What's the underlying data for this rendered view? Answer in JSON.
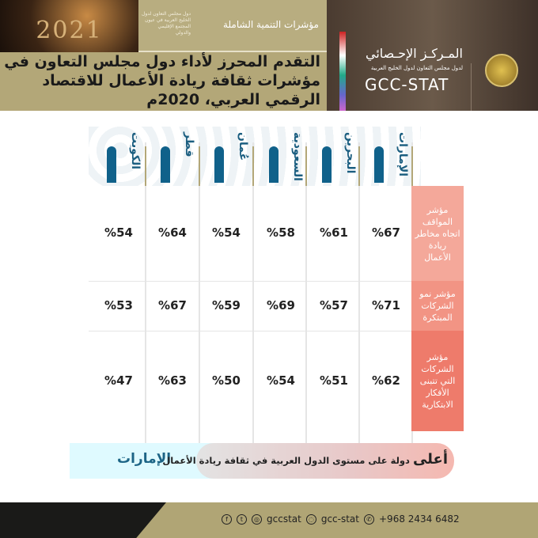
{
  "header": {
    "year": "2021",
    "series_title": "مؤشرات التنمية الشاملة",
    "series_subtitle": "دول مجلس التعاون لدول الخليج العربية في عيون المجتمع الإقليمي والدولي",
    "title": "التقدم المحرز لأداء دول مجلس التعاون في مؤشرات ثقافة ريادة الأعمال للاقتصاد الرقمي العربي، 2020م",
    "org_ar": "المـركـز الإحـصائي",
    "org_ar_sub": "لدول مجلس التعاون لدول الخليج العربية",
    "org_en": "GCC-STAT"
  },
  "countries": [
    "الإمارات",
    "البحرين",
    "السعودية",
    "عُمان",
    "قطر",
    "الكويت"
  ],
  "rows": [
    {
      "label": "مؤشر المواقف اتجاه مخاطر ريادة الأعمال",
      "color": "#f4a89a",
      "values": [
        "%67",
        "%61",
        "%58",
        "%54",
        "%64",
        "%54"
      ]
    },
    {
      "label": "مؤشر نمو الشركات المبتكرة",
      "color": "#f29484",
      "values": [
        "%71",
        "%57",
        "%69",
        "%59",
        "%67",
        "%53"
      ]
    },
    {
      "label": "مؤشر الشركات التي تتبنى الأفكار الابتكارية",
      "color": "#ee7b6b",
      "values": [
        "%62",
        "%51",
        "%54",
        "%50",
        "%63",
        "%47"
      ]
    }
  ],
  "banner": {
    "lead": "أعلى",
    "text": " دولة على مستوى الدول العربية في ثقافة ريادة الأعمال",
    "winner": "الإمارات"
  },
  "footer": {
    "handle": "gccstat",
    "snapchat": "gcc-stat",
    "phone": "+968 2434 6482"
  }
}
